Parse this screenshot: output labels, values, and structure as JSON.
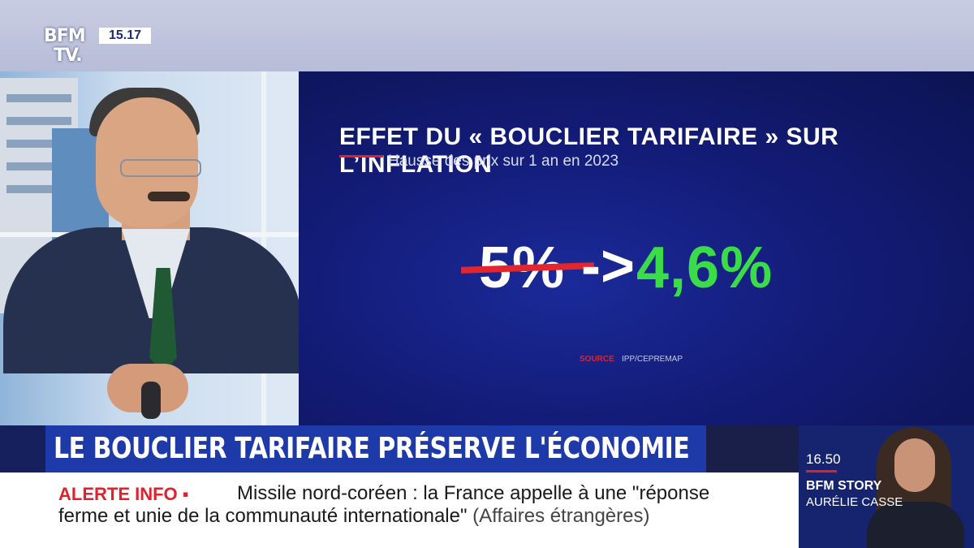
{
  "channel": {
    "logo_line1": "BFM",
    "logo_line2": "TV.",
    "clock": "15.17"
  },
  "graphic": {
    "title": "EFFET DU « BOUCLIER TARIFAIRE » SUR L’INFLATION",
    "subtitle": "Hausse des prix sur 1 an en 2023",
    "old_value": "5%",
    "arrow": "->",
    "new_value": "4,6%",
    "source_label": "SOURCE",
    "source_value": "IPP/CEPREMAP",
    "colors": {
      "accent_red": "#e3262e",
      "new_value_green": "#3bdc4a",
      "panel_blue": "#131c78"
    }
  },
  "headline": {
    "text": "LE BOUCLIER TARIFAIRE PRÉSERVE L'ÉCONOMIE"
  },
  "alert": {
    "tag": "ALERTE INFO ▪",
    "line1": "Missile nord-coréen : la France appelle à une \"réponse",
    "line2": "ferme et unie de la communauté internationale\"",
    "source": "(Affaires étrangères)"
  },
  "next_show": {
    "time": "16.50",
    "show": "BFM STORY",
    "host": "AURÉLIE CASSE"
  }
}
